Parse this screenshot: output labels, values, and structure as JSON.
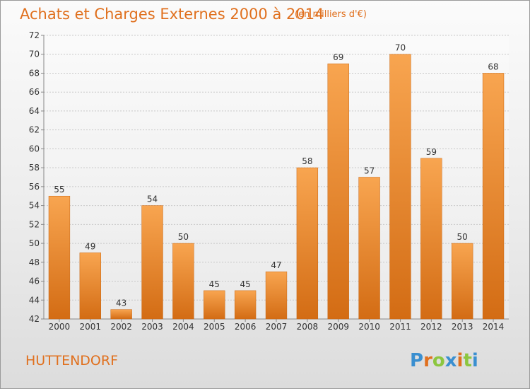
{
  "chart_data": {
    "type": "bar",
    "title": "Achats et Charges Externes 2000 à 2014",
    "subtitle": "(en milliers d'€)",
    "categories": [
      "2000",
      "2001",
      "2002",
      "2003",
      "2004",
      "2005",
      "2006",
      "2007",
      "2008",
      "2009",
      "2010",
      "2011",
      "2012",
      "2013",
      "2014"
    ],
    "values": [
      55,
      49,
      43,
      54,
      50,
      45,
      45,
      47,
      58,
      69,
      57,
      70,
      59,
      50,
      68
    ],
    "ylim": [
      42,
      72
    ],
    "yticks": [
      42,
      44,
      46,
      48,
      50,
      52,
      54,
      56,
      58,
      60,
      62,
      64,
      66,
      68,
      70,
      72
    ],
    "grid": true,
    "bar_color": "#f0913a",
    "bar_color_dark": "#d26a12"
  },
  "footer": {
    "city": "HUTTENDORF",
    "logo_text": "Proxiti"
  }
}
